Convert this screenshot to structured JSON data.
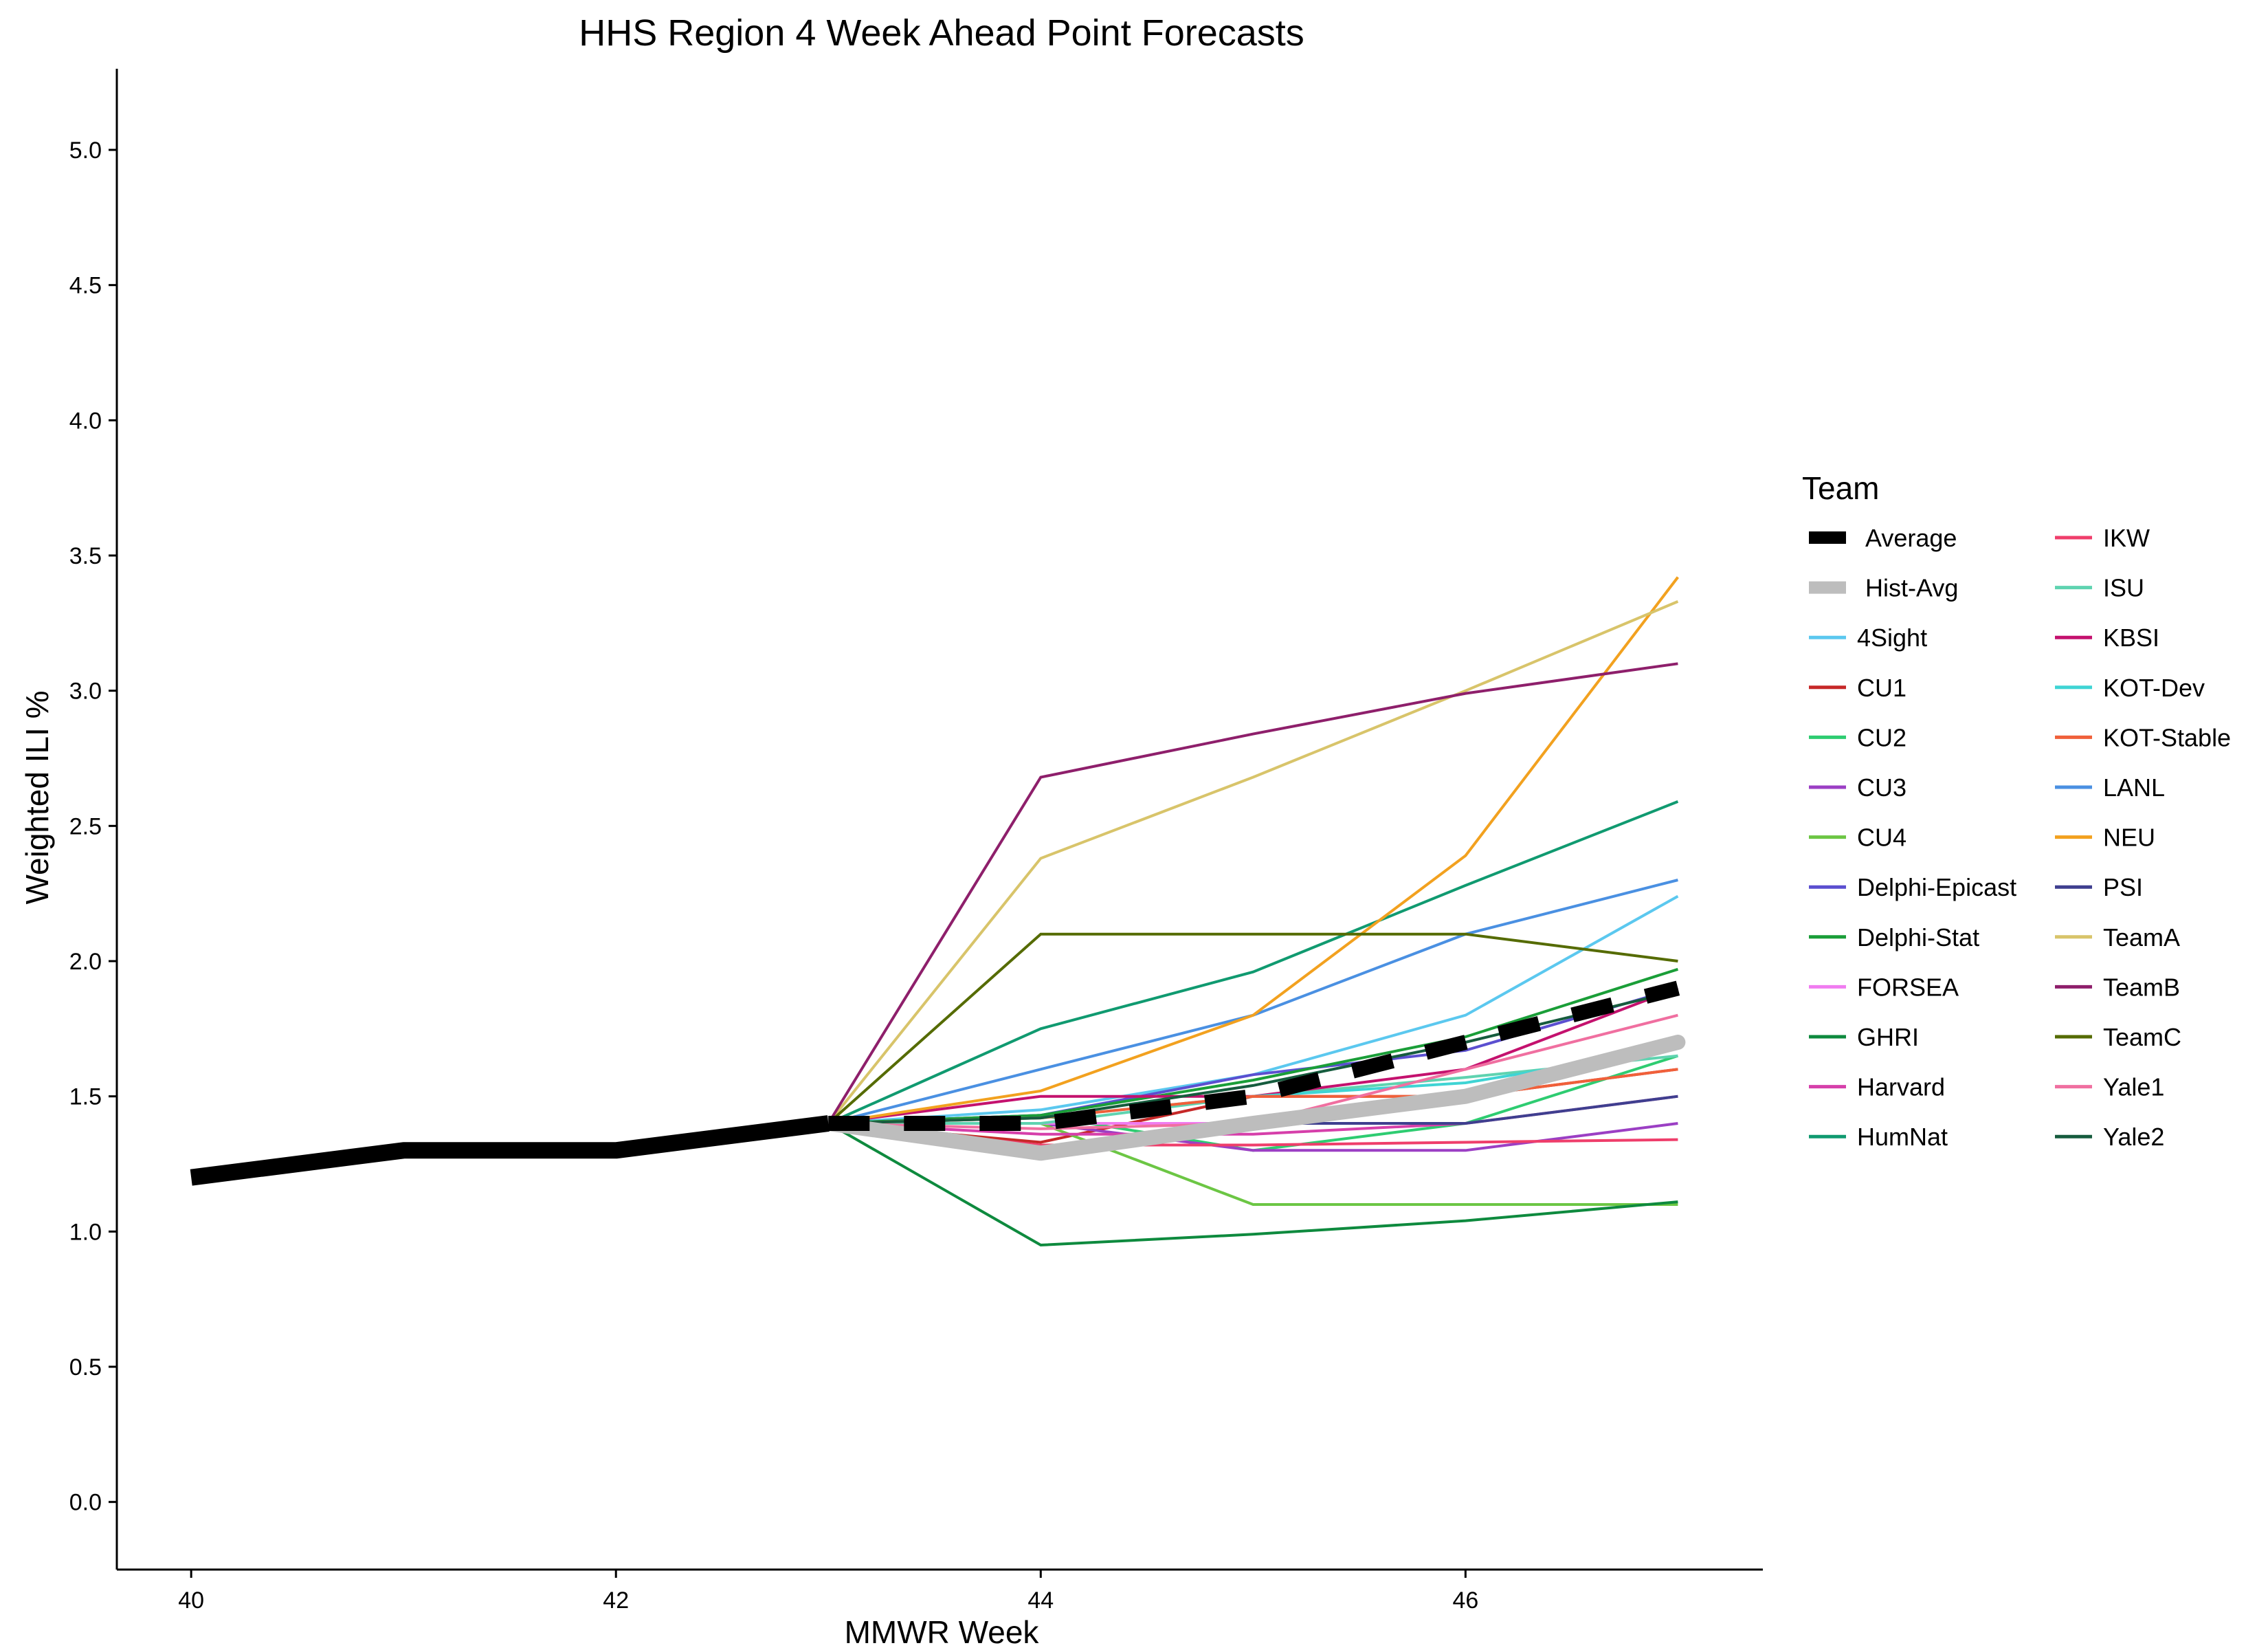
{
  "chart_data": {
    "type": "line",
    "title": "HHS Region 4 Week Ahead Point Forecasts",
    "xlabel": "MMWR Week",
    "ylabel": "Weighted ILI %",
    "xlim": [
      39.65,
      47.4
    ],
    "ylim": [
      -0.25,
      5.3
    ],
    "x_ticks": [
      40,
      42,
      44,
      46
    ],
    "x_tick_labels": [
      "40",
      "42",
      "44",
      "46"
    ],
    "y_ticks": [
      0,
      0.5,
      1,
      1.5,
      2,
      2.5,
      3,
      3.5,
      4,
      4.5,
      5
    ],
    "y_tick_labels": [
      "0.0",
      "0.5",
      "1.0",
      "1.5",
      "2.0",
      "2.5",
      "3.0",
      "3.5",
      "4.0",
      "4.5",
      "5.0"
    ],
    "grid": false,
    "legend_title": "Team",
    "legend_position": "right",
    "observed": {
      "x": [
        40,
        41,
        42,
        43
      ],
      "y": [
        1.2,
        1.3,
        1.3,
        1.4
      ],
      "color": "#000000"
    },
    "x": [
      43,
      44,
      45,
      46,
      47
    ],
    "series": [
      {
        "name": "Average",
        "color": "#000000",
        "values": [
          1.4,
          1.4,
          1.5,
          1.7,
          1.9
        ],
        "style": "dashed-thick"
      },
      {
        "name": "Hist-Avg",
        "color": "#bdbdbd",
        "values": [
          1.4,
          1.29,
          1.4,
          1.5,
          1.7
        ],
        "style": "thick"
      },
      {
        "name": "4Sight",
        "color": "#5bc8ef",
        "values": [
          1.4,
          1.45,
          1.58,
          1.8,
          2.24
        ]
      },
      {
        "name": "CU1",
        "color": "#c62828",
        "values": [
          1.4,
          1.33,
          1.5,
          1.5,
          1.6
        ]
      },
      {
        "name": "CU2",
        "color": "#2ecc71",
        "values": [
          1.4,
          1.43,
          1.3,
          1.4,
          1.65
        ]
      },
      {
        "name": "CU3",
        "color": "#9b3fc4",
        "values": [
          1.4,
          1.4,
          1.3,
          1.3,
          1.4
        ]
      },
      {
        "name": "CU4",
        "color": "#6cc644",
        "values": [
          1.4,
          1.4,
          1.1,
          1.1,
          1.1
        ]
      },
      {
        "name": "Delphi-Epicast",
        "color": "#5b4fd0",
        "values": [
          1.4,
          1.43,
          1.58,
          1.67,
          1.9
        ]
      },
      {
        "name": "Delphi-Stat",
        "color": "#1a9e38",
        "values": [
          1.4,
          1.43,
          1.56,
          1.72,
          1.97
        ]
      },
      {
        "name": "FORSEA",
        "color": "#f07cf0",
        "values": [
          1.4,
          1.4,
          1.4,
          1.5,
          1.7
        ]
      },
      {
        "name": "GHRI",
        "color": "#0e8a3e",
        "values": [
          1.4,
          0.95,
          0.99,
          1.04,
          1.11
        ]
      },
      {
        "name": "Harvard",
        "color": "#d63faa",
        "values": [
          1.4,
          1.36,
          1.36,
          1.4,
          1.5
        ]
      },
      {
        "name": "HumNat",
        "color": "#109a70",
        "values": [
          1.4,
          1.75,
          1.96,
          2.28,
          2.59
        ]
      },
      {
        "name": "IKW",
        "color": "#ef3e6b",
        "values": [
          1.4,
          1.32,
          1.32,
          1.33,
          1.34
        ]
      },
      {
        "name": "ISU",
        "color": "#5fd3b0",
        "values": [
          1.4,
          1.4,
          1.5,
          1.57,
          1.65
        ]
      },
      {
        "name": "KBSI",
        "color": "#c4116e",
        "values": [
          1.4,
          1.5,
          1.5,
          1.6,
          1.9
        ]
      },
      {
        "name": "KOT-Dev",
        "color": "#3fd4d4",
        "values": [
          1.4,
          1.42,
          1.5,
          1.55,
          1.68
        ]
      },
      {
        "name": "KOT-Stable",
        "color": "#f0603a",
        "values": [
          1.4,
          1.42,
          1.5,
          1.5,
          1.6
        ]
      },
      {
        "name": "LANL",
        "color": "#4a90e2",
        "values": [
          1.4,
          1.6,
          1.8,
          2.1,
          2.3
        ]
      },
      {
        "name": "NEU",
        "color": "#f2a11f",
        "values": [
          1.4,
          1.52,
          1.8,
          2.39,
          3.42
        ]
      },
      {
        "name": "PSI",
        "color": "#3f3f8f",
        "values": [
          1.4,
          1.3,
          1.4,
          1.4,
          1.5
        ]
      },
      {
        "name": "TeamA",
        "color": "#d8c46a",
        "values": [
          1.4,
          2.38,
          2.68,
          3.0,
          3.33
        ]
      },
      {
        "name": "TeamB",
        "color": "#8e1f6b",
        "values": [
          1.4,
          2.68,
          2.84,
          2.99,
          3.1
        ]
      },
      {
        "name": "TeamC",
        "color": "#556b00",
        "values": [
          1.4,
          2.1,
          2.1,
          2.1,
          2.0
        ]
      },
      {
        "name": "Yale1",
        "color": "#f06fa0",
        "values": [
          1.4,
          1.38,
          1.4,
          1.6,
          1.8
        ]
      },
      {
        "name": "Yale2",
        "color": "#165c3e",
        "values": [
          1.4,
          1.42,
          1.54,
          1.7,
          1.89
        ]
      }
    ]
  }
}
